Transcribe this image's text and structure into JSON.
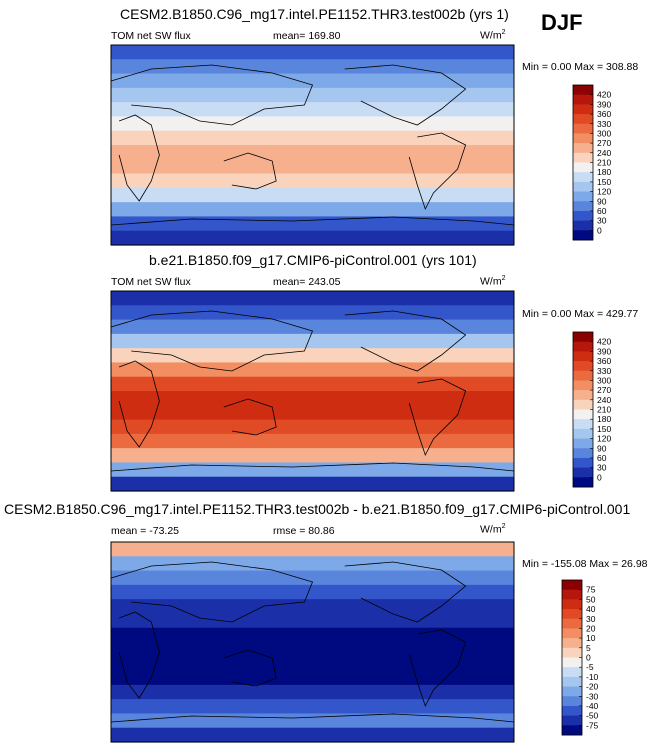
{
  "season": "DJF",
  "panels": [
    {
      "title": "CESM2.B1850.C96_mg17.intel.PE1152.THR3.test002b (yrs 1)",
      "left_label": "TOM net SW flux",
      "center_label": "mean= 169.80",
      "units": "W/m",
      "units_sup": "2",
      "minmax": "Min =   0.00 Max = 308.88"
    },
    {
      "title": "b.e21.B1850.f09_g17.CMIP6-piControl.001 (yrs 101)",
      "left_label": "TOM net SW flux",
      "center_label": "mean= 243.05",
      "units": "W/m",
      "units_sup": "2",
      "minmax": "Min =   0.00 Max = 429.77"
    },
    {
      "title": "CESM2.B1850.C96_mg17.intel.PE1152.THR3.test002b - b.e21.B1850.f09_g17.CMIP6-piControl.001",
      "left_label": "mean = -73.25",
      "center_label": "rmse =  80.86",
      "units": "W/m",
      "units_sup": "2",
      "minmax": "Min = -155.08 Max =  26.98"
    }
  ],
  "colorbars": {
    "abs": {
      "labels": [
        "420",
        "390",
        "360",
        "330",
        "300",
        "270",
        "240",
        "210",
        "180",
        "150",
        "120",
        "90",
        "60",
        "30",
        "0"
      ],
      "colors": [
        "#8b0000",
        "#b5170c",
        "#cf2d12",
        "#e04a24",
        "#ec6a40",
        "#f38e62",
        "#f7b08d",
        "#fad3bd",
        "#f3f0f0",
        "#c8dcf4",
        "#a4c6ef",
        "#7ea9e8",
        "#5a85dd",
        "#3357cb",
        "#1b30a8",
        "#000a80"
      ]
    },
    "diff": {
      "labels": [
        "75",
        "50",
        "40",
        "30",
        "20",
        "10",
        "5",
        "0",
        "-5",
        "-10",
        "-20",
        "-30",
        "-40",
        "-50",
        "-75"
      ],
      "colors": [
        "#8b0000",
        "#b5170c",
        "#cf2d12",
        "#e04a24",
        "#ec6a40",
        "#f38e62",
        "#f7b08d",
        "#fad3bd",
        "#f3f0f0",
        "#c8dcf4",
        "#a4c6ef",
        "#7ea9e8",
        "#5a85dd",
        "#3357cb",
        "#1b30a8",
        "#000a80"
      ]
    }
  },
  "chart_data": [
    {
      "type": "heatmap",
      "title": "CESM2.B1850.C96_mg17.intel.PE1152.THR3.test002b (yrs 1)",
      "variable": "TOM net SW flux",
      "units": "W/m2",
      "mean": 169.8,
      "min": 0.0,
      "max": 308.88,
      "colorbar_levels": [
        0,
        30,
        60,
        90,
        120,
        150,
        180,
        210,
        240,
        270,
        300,
        330,
        360,
        390,
        420
      ]
    },
    {
      "type": "heatmap",
      "title": "b.e21.B1850.f09_g17.CMIP6-piControl.001 (yrs 101)",
      "variable": "TOM net SW flux",
      "units": "W/m2",
      "mean": 243.05,
      "min": 0.0,
      "max": 429.77,
      "colorbar_levels": [
        0,
        30,
        60,
        90,
        120,
        150,
        180,
        210,
        240,
        270,
        300,
        330,
        360,
        390,
        420
      ]
    },
    {
      "type": "heatmap",
      "title": "CESM2.B1850.C96_mg17.intel.PE1152.THR3.test002b - b.e21.B1850.f09_g17.CMIP6-piControl.001",
      "units": "W/m2",
      "mean": -73.25,
      "rmse": 80.86,
      "min": -155.08,
      "max": 26.98,
      "colorbar_levels": [
        -75,
        -50,
        -40,
        -30,
        -20,
        -10,
        -5,
        0,
        5,
        10,
        20,
        30,
        40,
        50,
        75
      ]
    }
  ]
}
